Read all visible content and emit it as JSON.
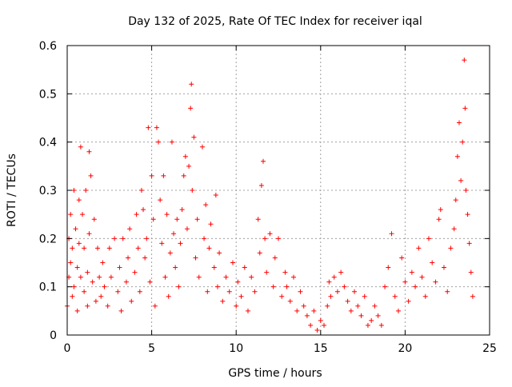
{
  "chart_data": {
    "type": "scatter",
    "title": "Day 132 of 2025, Rate Of TEC Index for receiver iqal",
    "xlabel": "GPS time / hours",
    "ylabel": "ROTI / TECUs",
    "xlim": [
      0,
      25
    ],
    "ylim": [
      0,
      0.6
    ],
    "x_ticks": [
      0,
      5,
      10,
      15,
      20,
      25
    ],
    "y_ticks": [
      0,
      0.1,
      0.2,
      0.3,
      0.4,
      0.5,
      0.6
    ],
    "x_tick_labels": [
      "0",
      "5",
      "10",
      "15",
      "20",
      "25"
    ],
    "y_tick_labels": [
      "0",
      "0.1",
      "0.2",
      "0.3",
      "0.4",
      "0.5",
      "0.6"
    ],
    "grid": true,
    "marker": "+",
    "color": "#ff0000",
    "series": [
      {
        "name": "ROTI",
        "points": [
          [
            0.0,
            0.06
          ],
          [
            0.1,
            0.12
          ],
          [
            0.1,
            0.2
          ],
          [
            0.2,
            0.15
          ],
          [
            0.2,
            0.25
          ],
          [
            0.3,
            0.08
          ],
          [
            0.3,
            0.18
          ],
          [
            0.4,
            0.3
          ],
          [
            0.4,
            0.1
          ],
          [
            0.5,
            0.22
          ],
          [
            0.6,
            0.14
          ],
          [
            0.6,
            0.05
          ],
          [
            0.7,
            0.28
          ],
          [
            0.7,
            0.19
          ],
          [
            0.8,
            0.39
          ],
          [
            0.8,
            0.12
          ],
          [
            0.9,
            0.25
          ],
          [
            1.0,
            0.09
          ],
          [
            1.0,
            0.18
          ],
          [
            1.1,
            0.3
          ],
          [
            1.2,
            0.13
          ],
          [
            1.2,
            0.06
          ],
          [
            1.3,
            0.38
          ],
          [
            1.3,
            0.21
          ],
          [
            1.4,
            0.33
          ],
          [
            1.5,
            0.11
          ],
          [
            1.6,
            0.24
          ],
          [
            1.7,
            0.07
          ],
          [
            1.8,
            0.18
          ],
          [
            1.9,
            0.12
          ],
          [
            2.0,
            0.08
          ],
          [
            2.1,
            0.15
          ],
          [
            2.2,
            0.1
          ],
          [
            2.4,
            0.06
          ],
          [
            2.5,
            0.18
          ],
          [
            2.6,
            0.12
          ],
          [
            2.8,
            0.2
          ],
          [
            3.0,
            0.09
          ],
          [
            3.1,
            0.14
          ],
          [
            3.2,
            0.05
          ],
          [
            3.3,
            0.2
          ],
          [
            3.5,
            0.11
          ],
          [
            3.6,
            0.16
          ],
          [
            3.7,
            0.22
          ],
          [
            3.8,
            0.07
          ],
          [
            4.0,
            0.13
          ],
          [
            4.1,
            0.25
          ],
          [
            4.2,
            0.18
          ],
          [
            4.3,
            0.09
          ],
          [
            4.4,
            0.3
          ],
          [
            4.5,
            0.26
          ],
          [
            4.6,
            0.16
          ],
          [
            4.7,
            0.2
          ],
          [
            4.8,
            0.43
          ],
          [
            4.9,
            0.11
          ],
          [
            5.0,
            0.33
          ],
          [
            5.1,
            0.24
          ],
          [
            5.2,
            0.06
          ],
          [
            5.3,
            0.43
          ],
          [
            5.4,
            0.4
          ],
          [
            5.5,
            0.28
          ],
          [
            5.6,
            0.19
          ],
          [
            5.7,
            0.33
          ],
          [
            5.8,
            0.12
          ],
          [
            5.9,
            0.25
          ],
          [
            6.0,
            0.08
          ],
          [
            6.1,
            0.17
          ],
          [
            6.2,
            0.4
          ],
          [
            6.3,
            0.21
          ],
          [
            6.4,
            0.14
          ],
          [
            6.5,
            0.24
          ],
          [
            6.6,
            0.1
          ],
          [
            6.7,
            0.19
          ],
          [
            6.8,
            0.26
          ],
          [
            6.9,
            0.33
          ],
          [
            7.0,
            0.37
          ],
          [
            7.1,
            0.22
          ],
          [
            7.2,
            0.35
          ],
          [
            7.3,
            0.47
          ],
          [
            7.35,
            0.52
          ],
          [
            7.4,
            0.3
          ],
          [
            7.5,
            0.41
          ],
          [
            7.6,
            0.16
          ],
          [
            7.7,
            0.24
          ],
          [
            7.8,
            0.12
          ],
          [
            8.0,
            0.39
          ],
          [
            8.1,
            0.2
          ],
          [
            8.2,
            0.27
          ],
          [
            8.3,
            0.09
          ],
          [
            8.4,
            0.18
          ],
          [
            8.5,
            0.23
          ],
          [
            8.7,
            0.14
          ],
          [
            8.8,
            0.29
          ],
          [
            8.9,
            0.1
          ],
          [
            9.0,
            0.17
          ],
          [
            9.2,
            0.07
          ],
          [
            9.4,
            0.12
          ],
          [
            9.6,
            0.09
          ],
          [
            9.8,
            0.15
          ],
          [
            10.0,
            0.06
          ],
          [
            10.1,
            0.11
          ],
          [
            10.3,
            0.08
          ],
          [
            10.5,
            0.14
          ],
          [
            10.7,
            0.05
          ],
          [
            10.9,
            0.12
          ],
          [
            11.1,
            0.09
          ],
          [
            11.3,
            0.24
          ],
          [
            11.4,
            0.17
          ],
          [
            11.5,
            0.31
          ],
          [
            11.6,
            0.36
          ],
          [
            11.7,
            0.2
          ],
          [
            11.8,
            0.13
          ],
          [
            12.0,
            0.21
          ],
          [
            12.2,
            0.1
          ],
          [
            12.3,
            0.16
          ],
          [
            12.5,
            0.2
          ],
          [
            12.7,
            0.08
          ],
          [
            12.9,
            0.13
          ],
          [
            13.0,
            0.1
          ],
          [
            13.2,
            0.07
          ],
          [
            13.4,
            0.12
          ],
          [
            13.6,
            0.05
          ],
          [
            13.8,
            0.09
          ],
          [
            14.0,
            0.06
          ],
          [
            14.2,
            0.04
          ],
          [
            14.4,
            0.02
          ],
          [
            14.6,
            0.05
          ],
          [
            14.8,
            0.01
          ],
          [
            15.0,
            0.03
          ],
          [
            15.2,
            0.02
          ],
          [
            15.4,
            0.06
          ],
          [
            15.5,
            0.11
          ],
          [
            15.6,
            0.08
          ],
          [
            15.8,
            0.12
          ],
          [
            16.0,
            0.09
          ],
          [
            16.2,
            0.13
          ],
          [
            16.4,
            0.1
          ],
          [
            16.6,
            0.07
          ],
          [
            16.8,
            0.05
          ],
          [
            17.0,
            0.09
          ],
          [
            17.2,
            0.06
          ],
          [
            17.4,
            0.04
          ],
          [
            17.6,
            0.08
          ],
          [
            17.8,
            0.02
          ],
          [
            18.0,
            0.03
          ],
          [
            18.2,
            0.06
          ],
          [
            18.4,
            0.04
          ],
          [
            18.6,
            0.02
          ],
          [
            18.8,
            0.1
          ],
          [
            19.0,
            0.14
          ],
          [
            19.2,
            0.21
          ],
          [
            19.4,
            0.08
          ],
          [
            19.6,
            0.05
          ],
          [
            19.8,
            0.16
          ],
          [
            20.0,
            0.11
          ],
          [
            20.2,
            0.07
          ],
          [
            20.4,
            0.13
          ],
          [
            20.6,
            0.1
          ],
          [
            20.8,
            0.18
          ],
          [
            21.0,
            0.12
          ],
          [
            21.2,
            0.08
          ],
          [
            21.4,
            0.2
          ],
          [
            21.6,
            0.15
          ],
          [
            21.8,
            0.11
          ],
          [
            22.0,
            0.24
          ],
          [
            22.1,
            0.26
          ],
          [
            22.3,
            0.14
          ],
          [
            22.5,
            0.09
          ],
          [
            22.7,
            0.18
          ],
          [
            22.9,
            0.22
          ],
          [
            23.0,
            0.28
          ],
          [
            23.1,
            0.37
          ],
          [
            23.2,
            0.44
          ],
          [
            23.3,
            0.32
          ],
          [
            23.4,
            0.4
          ],
          [
            23.5,
            0.57
          ],
          [
            23.55,
            0.47
          ],
          [
            23.6,
            0.3
          ],
          [
            23.7,
            0.25
          ],
          [
            23.8,
            0.19
          ],
          [
            23.9,
            0.13
          ],
          [
            24.0,
            0.08
          ]
        ]
      }
    ]
  }
}
